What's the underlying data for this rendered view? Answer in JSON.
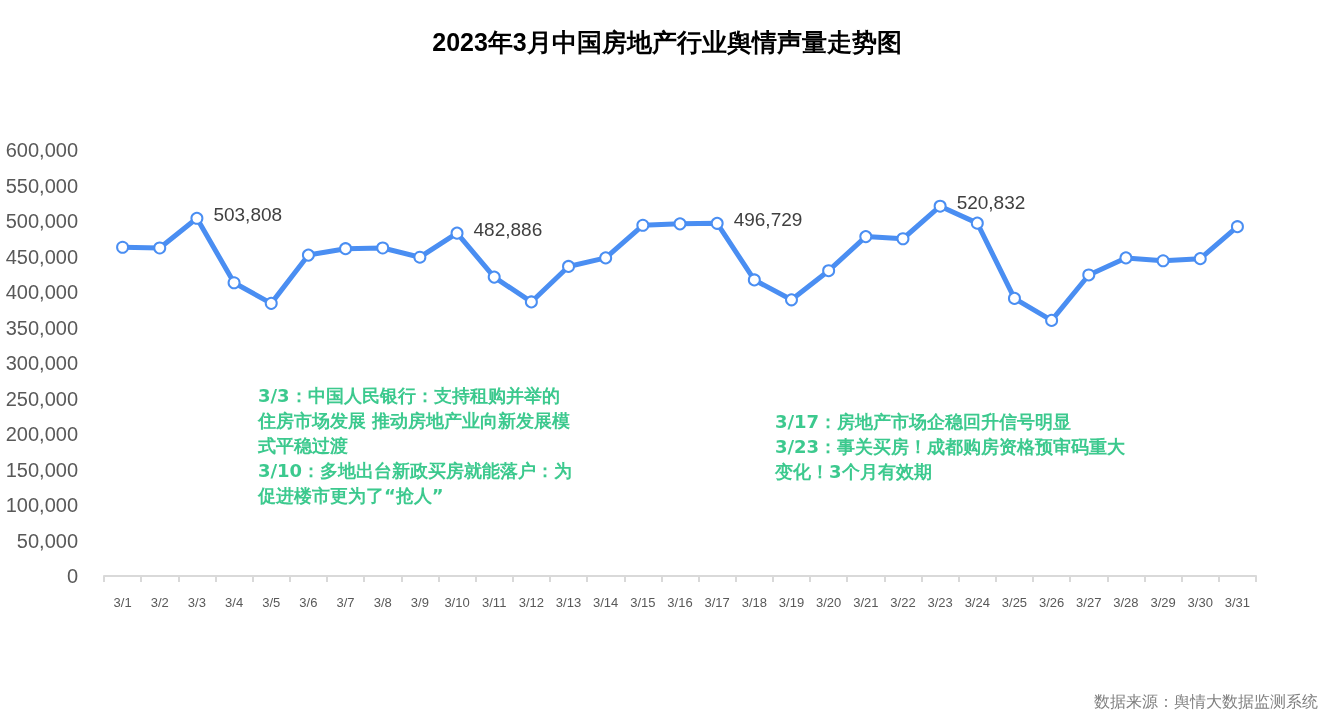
{
  "chart_data": {
    "type": "line",
    "title": "2023年3月中国房地产行业舆情声量走势图",
    "categories": [
      "3/1",
      "3/2",
      "3/3",
      "3/4",
      "3/5",
      "3/6",
      "3/7",
      "3/8",
      "3/9",
      "3/10",
      "3/11",
      "3/12",
      "3/13",
      "3/14",
      "3/15",
      "3/16",
      "3/17",
      "3/18",
      "3/19",
      "3/20",
      "3/21",
      "3/22",
      "3/23",
      "3/24",
      "3/25",
      "3/26",
      "3/27",
      "3/28",
      "3/29",
      "3/30",
      "3/31"
    ],
    "values": [
      463000,
      462000,
      503808,
      413000,
      384000,
      452000,
      461000,
      462000,
      449000,
      482886,
      421000,
      386000,
      436000,
      448000,
      494000,
      496000,
      496729,
      417000,
      389000,
      430000,
      478000,
      475000,
      520832,
      497000,
      391000,
      360000,
      424000,
      448000,
      444000,
      447000,
      492000
    ],
    "color": "#4a8ef2",
    "value_labels": [
      null,
      null,
      "503,808",
      null,
      null,
      null,
      null,
      null,
      null,
      "482,886",
      null,
      null,
      null,
      null,
      null,
      null,
      "496,729",
      null,
      null,
      null,
      null,
      null,
      "520,832",
      null,
      null,
      null,
      null,
      null,
      null,
      null,
      null
    ],
    "ylim": [
      0,
      600000
    ],
    "yticks": [
      0,
      {
        "value": 50000,
        "label": "50,000"
      },
      {
        "value": 100000,
        "label": "100,000"
      },
      {
        "value": 150000,
        "label": "150,000"
      },
      {
        "value": 200000,
        "label": "200,000"
      },
      {
        "value": 250000,
        "label": "250,000"
      },
      {
        "value": 300000,
        "label": "300,000"
      },
      {
        "value": 350000,
        "label": "350,000"
      },
      {
        "value": 400000,
        "label": "400,000"
      },
      {
        "value": 450000,
        "label": "450,000"
      },
      {
        "value": 500000,
        "label": "500,000"
      },
      {
        "value": 550000,
        "label": "550,000"
      },
      {
        "value": 600000,
        "label": "600,000"
      }
    ],
    "grid": false,
    "marker": "circle",
    "line_style": "solid",
    "annotations": [
      "3/3：中国人民银行：支持租购并举的住房市场发展 推动房地产业向新发展模式平稳过渡",
      "3/10：多地出台新政买房就能落户：为促进楼市更为了“抢人”",
      "3/17：房地产市场企稳回升信号明显",
      "3/23：事关买房！成都购房资格预审码重大变化！3个月有效期",
      "数据来源：舆情大数据监测系统"
    ]
  }
}
